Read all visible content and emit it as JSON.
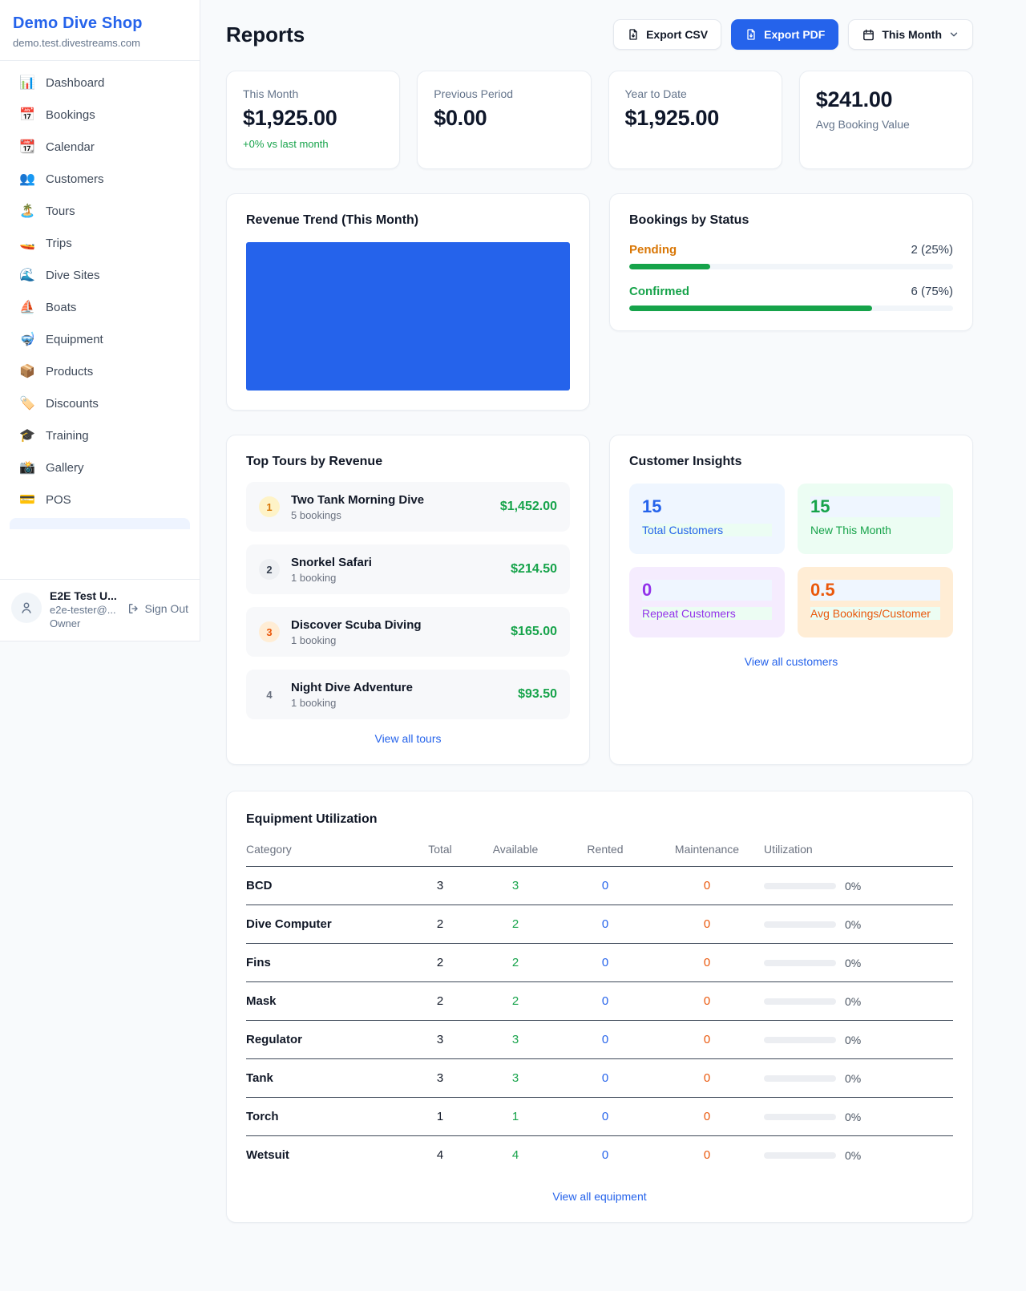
{
  "colors": {
    "accent_blue": "#2563eb",
    "green": "#16a34a",
    "amber": "#d97706",
    "orange": "#ea580c",
    "purple": "#9333ea"
  },
  "sidebar": {
    "shop_name": "Demo Dive Shop",
    "shop_domain": "demo.test.divestreams.com",
    "items": [
      {
        "icon": "📊",
        "label": "Dashboard"
      },
      {
        "icon": "📅",
        "label": "Bookings"
      },
      {
        "icon": "📆",
        "label": "Calendar"
      },
      {
        "icon": "👥",
        "label": "Customers"
      },
      {
        "icon": "🏝️",
        "label": "Tours"
      },
      {
        "icon": "🚤",
        "label": "Trips"
      },
      {
        "icon": "🌊",
        "label": "Dive Sites"
      },
      {
        "icon": "⛵",
        "label": "Boats"
      },
      {
        "icon": "🤿",
        "label": "Equipment"
      },
      {
        "icon": "📦",
        "label": "Products"
      },
      {
        "icon": "🏷️",
        "label": "Discounts"
      },
      {
        "icon": "🎓",
        "label": "Training"
      },
      {
        "icon": "📸",
        "label": "Gallery"
      },
      {
        "icon": "💳",
        "label": "POS"
      }
    ],
    "user": {
      "name": "E2E Test U...",
      "email": "e2e-tester@...",
      "role": "Owner",
      "sign_out_label": "Sign Out"
    }
  },
  "header": {
    "title": "Reports",
    "export_csv_label": "Export CSV",
    "export_pdf_label": "Export PDF",
    "period_label": "This Month"
  },
  "stats": [
    {
      "label": "This Month",
      "value": "$1,925.00",
      "delta": "+0% vs last month"
    },
    {
      "label": "Previous Period",
      "value": "$0.00"
    },
    {
      "label": "Year to Date",
      "value": "$1,925.00"
    },
    {
      "label": "Avg Booking Value",
      "value": "$241.00"
    }
  ],
  "revenue_trend": {
    "title": "Revenue Trend (This Month)"
  },
  "bookings_by_status": {
    "title": "Bookings by Status",
    "rows": [
      {
        "label": "Pending",
        "count_text": "2 (25%)",
        "percent": 25
      },
      {
        "label": "Confirmed",
        "count_text": "6 (75%)",
        "percent": 75
      }
    ]
  },
  "top_tours": {
    "title": "Top Tours by Revenue",
    "view_all_label": "View all tours",
    "items": [
      {
        "rank": "1",
        "name": "Two Tank Morning Dive",
        "bookings": "5 bookings",
        "amount": "$1,452.00"
      },
      {
        "rank": "2",
        "name": "Snorkel Safari",
        "bookings": "1 booking",
        "amount": "$214.50"
      },
      {
        "rank": "3",
        "name": "Discover Scuba Diving",
        "bookings": "1 booking",
        "amount": "$165.00"
      },
      {
        "rank": "4",
        "name": "Night Dive Adventure",
        "bookings": "1 booking",
        "amount": "$93.50"
      }
    ]
  },
  "customer_insights": {
    "title": "Customer Insights",
    "view_all_label": "View all customers",
    "tiles": [
      {
        "value": "15",
        "label": "Total Customers"
      },
      {
        "value": "15",
        "label": "New This Month"
      },
      {
        "value": "0",
        "label": "Repeat Customers"
      },
      {
        "value": "0.5",
        "label": "Avg Bookings/Customer"
      }
    ]
  },
  "equipment": {
    "title": "Equipment Utilization",
    "view_all_label": "View all equipment",
    "columns": [
      "Category",
      "Total",
      "Available",
      "Rented",
      "Maintenance",
      "Utilization"
    ],
    "rows": [
      {
        "category": "BCD",
        "total": "3",
        "available": "3",
        "rented": "0",
        "maintenance": "0",
        "utilization_text": "0%",
        "utilization_pct": 0
      },
      {
        "category": "Dive Computer",
        "total": "2",
        "available": "2",
        "rented": "0",
        "maintenance": "0",
        "utilization_text": "0%",
        "utilization_pct": 0
      },
      {
        "category": "Fins",
        "total": "2",
        "available": "2",
        "rented": "0",
        "maintenance": "0",
        "utilization_text": "0%",
        "utilization_pct": 0
      },
      {
        "category": "Mask",
        "total": "2",
        "available": "2",
        "rented": "0",
        "maintenance": "0",
        "utilization_text": "0%",
        "utilization_pct": 0
      },
      {
        "category": "Regulator",
        "total": "3",
        "available": "3",
        "rented": "0",
        "maintenance": "0",
        "utilization_text": "0%",
        "utilization_pct": 0
      },
      {
        "category": "Tank",
        "total": "3",
        "available": "3",
        "rented": "0",
        "maintenance": "0",
        "utilization_text": "0%",
        "utilization_pct": 0
      },
      {
        "category": "Torch",
        "total": "1",
        "available": "1",
        "rented": "0",
        "maintenance": "0",
        "utilization_text": "0%",
        "utilization_pct": 0
      },
      {
        "category": "Wetsuit",
        "total": "4",
        "available": "4",
        "rented": "0",
        "maintenance": "0",
        "utilization_text": "0%",
        "utilization_pct": 0
      }
    ]
  }
}
